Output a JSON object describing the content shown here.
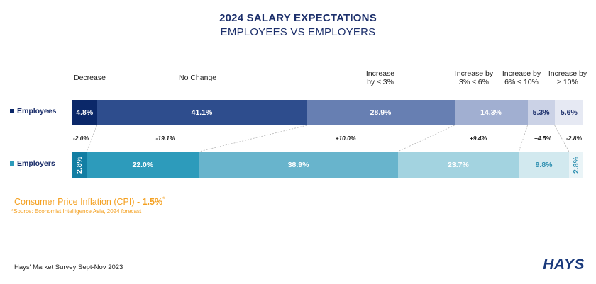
{
  "title": "2024 SALARY EXPECTATIONS",
  "subtitle": "EMPLOYEES VS EMPLOYERS",
  "chart_data": {
    "type": "bar",
    "orientation": "horizontal-stacked-100",
    "categories": [
      "Decrease",
      "No Change",
      "Increase\nby ≤ 3%",
      "Increase by\n3% ≤ 6%",
      "Increase by\n6% ≤ 10%",
      "Increase by\n≥ 10%"
    ],
    "series": [
      {
        "name": "Employees",
        "values": [
          4.8,
          41.1,
          28.9,
          14.3,
          5.3,
          5.6
        ],
        "labels": [
          "4.8%",
          "41.1%",
          "28.9%",
          "14.3%",
          "5.3%",
          "5.6%"
        ],
        "colors": [
          "#0b2869",
          "#2e4d8d",
          "#677fb2",
          "#a1afd1",
          "#cbd2e6",
          "#e6e9f3"
        ],
        "text_colors": [
          "#ffffff",
          "#ffffff",
          "#ffffff",
          "#ffffff",
          "#1c2f6b",
          "#1c2f6b"
        ],
        "legend_color": "#0b2869"
      },
      {
        "name": "Employers",
        "values": [
          2.8,
          22.0,
          38.9,
          23.7,
          9.8,
          2.8
        ],
        "labels": [
          "2.8%",
          "22.0%",
          "38.9%",
          "23.7%",
          "9.8%",
          "2.8%"
        ],
        "colors": [
          "#127ea3",
          "#2d9bbb",
          "#68b4cc",
          "#a3d3e0",
          "#d2e9ef",
          "#eaf4f7"
        ],
        "text_colors": [
          "#ffffff",
          "#ffffff",
          "#ffffff",
          "#ffffff",
          "#2d8fb0",
          "#2d8fb0"
        ],
        "legend_color": "#2d9bbb"
      }
    ],
    "differences": [
      "-2.0%",
      "-19.1%",
      "+10.0%",
      "+9.4%",
      "+4.5%",
      "-2.8%"
    ],
    "legend": "left"
  },
  "cpi": {
    "label": "Consumer Price Inflation (CPI) - ",
    "value": "1.5%",
    "mark": "*"
  },
  "source": "*Source: Economist Intelligence Asia, 2024 forecast",
  "footer": "Hays' Market Survey Sept-Nov 2023",
  "logo": "HAYS"
}
